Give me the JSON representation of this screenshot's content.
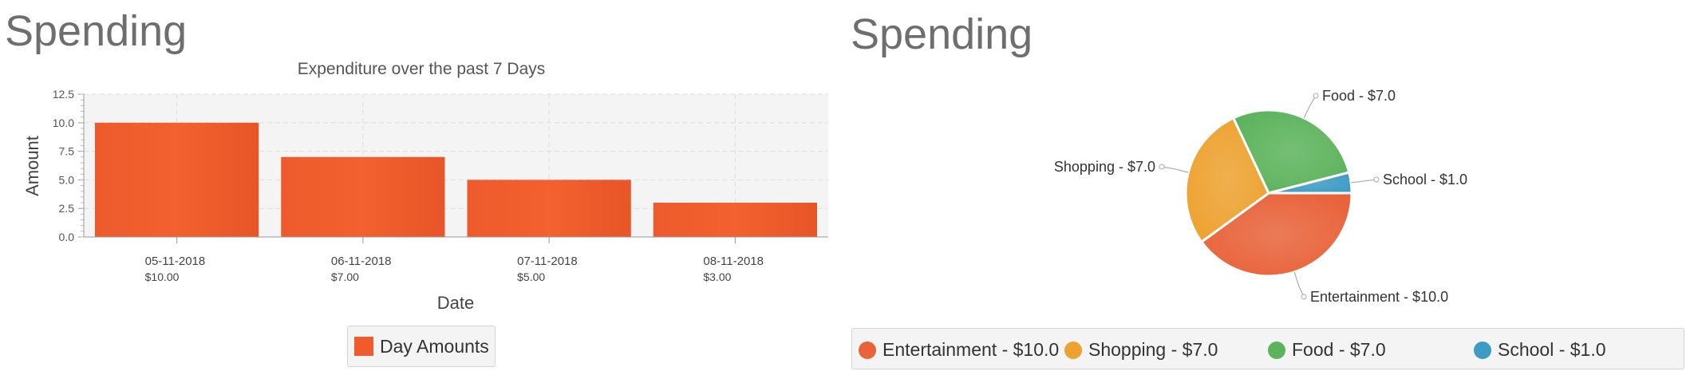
{
  "bar_panel": {
    "title": "Spending"
  },
  "pie_panel": {
    "title": "Spending"
  },
  "chart_data": [
    {
      "type": "bar",
      "title": "Expenditure over the past 7 Days",
      "xlabel": "Date",
      "ylabel": "Amount",
      "categories": [
        "05-11-2018",
        "06-11-2018",
        "07-11-2018",
        "08-11-2018"
      ],
      "category_sublabels": [
        "$10.00",
        "$7.00",
        "$5.00",
        "$3.00"
      ],
      "series": [
        {
          "name": "Day Amounts",
          "values": [
            10.0,
            7.0,
            5.0,
            3.0
          ],
          "color": "#f05a2d"
        }
      ],
      "ylim": [
        0,
        12.5
      ],
      "yticks": [
        "0.0",
        "2.5",
        "5.0",
        "7.5",
        "10.0",
        "12.5"
      ],
      "grid": true,
      "legend": "bottom"
    },
    {
      "type": "pie",
      "slices": [
        {
          "label": "Entertainment - $10.0",
          "value": 10.0,
          "color": "#e8633a"
        },
        {
          "label": "Shopping - $7.0",
          "value": 7.0,
          "color": "#eda230"
        },
        {
          "label": "Food - $7.0",
          "value": 7.0,
          "color": "#5cb35c"
        },
        {
          "label": "School - $1.0",
          "value": 1.0,
          "color": "#3e9bc4"
        }
      ],
      "legend": "bottom"
    }
  ]
}
